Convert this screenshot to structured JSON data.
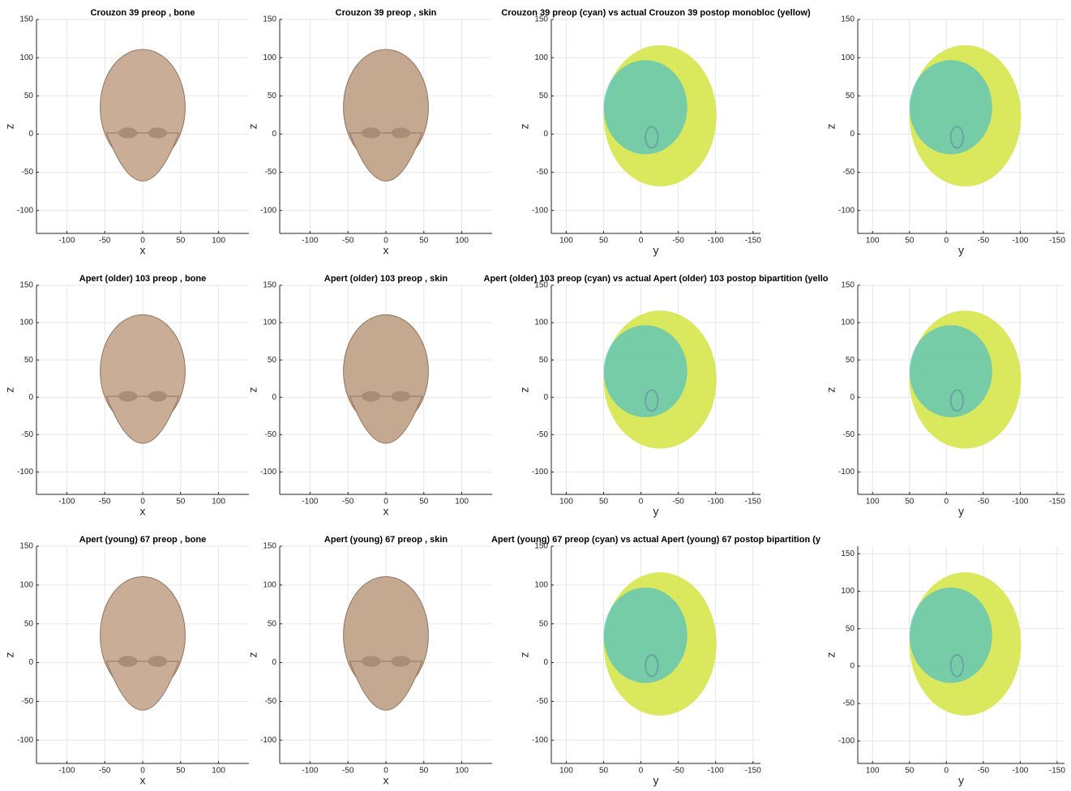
{
  "chart_data": [
    {
      "type": "surface",
      "title": "Crouzon 39 preop , bone",
      "xlabel": "x",
      "ylabel": "z",
      "xlim": [
        -140,
        140
      ],
      "ylim": [
        -130,
        150
      ],
      "xticks": [
        -100,
        -50,
        0,
        50,
        100
      ],
      "yticks": [
        -100,
        -50,
        0,
        50,
        100,
        150
      ],
      "grid": true,
      "colors": [
        "#c9ad96"
      ]
    },
    {
      "type": "surface",
      "title": "Crouzon 39 preop , skin",
      "xlabel": "x",
      "ylabel": "z",
      "xlim": [
        -140,
        140
      ],
      "ylim": [
        -130,
        150
      ],
      "xticks": [
        -100,
        -50,
        0,
        50,
        100
      ],
      "yticks": [
        -100,
        -50,
        0,
        50,
        100,
        150
      ],
      "grid": true,
      "colors": [
        "#c4a890"
      ]
    },
    {
      "type": "surface",
      "title": "Crouzon 39 preop (cyan) vs actual Crouzon 39 postop monobloc (yellow)",
      "xlabel": "y",
      "ylabel": "z",
      "xlim": [
        120,
        -160
      ],
      "ylim": [
        -130,
        150
      ],
      "xticks": [
        100,
        50,
        0,
        -50,
        -100,
        -150
      ],
      "yticks": [
        -100,
        -50,
        0,
        50,
        100,
        150
      ],
      "grid": true,
      "colors": [
        "#d6e64c",
        "#22b4e4"
      ]
    },
    {
      "type": "surface",
      "xlabel": "y",
      "ylabel": "z",
      "xlim": [
        120,
        -160
      ],
      "ylim": [
        -130,
        150
      ],
      "xticks": [
        100,
        50,
        0,
        -50,
        -100,
        -150
      ],
      "yticks": [
        -100,
        -50,
        0,
        50,
        100,
        150
      ],
      "grid": true,
      "colors": [
        "#d6e64c",
        "#22b4e4"
      ]
    },
    {
      "type": "surface",
      "title": "Apert (older) 103 preop , bone",
      "xlabel": "x",
      "ylabel": "z",
      "xlim": [
        -140,
        140
      ],
      "ylim": [
        -130,
        150
      ],
      "xticks": [
        -100,
        -50,
        0,
        50,
        100
      ],
      "yticks": [
        -100,
        -50,
        0,
        50,
        100,
        150
      ],
      "grid": true,
      "colors": [
        "#c9ad96"
      ]
    },
    {
      "type": "surface",
      "title": "Apert (older) 103 preop , skin",
      "xlabel": "x",
      "ylabel": "z",
      "xlim": [
        -140,
        140
      ],
      "ylim": [
        -130,
        150
      ],
      "xticks": [
        -100,
        -50,
        0,
        50,
        100
      ],
      "yticks": [
        -100,
        -50,
        0,
        50,
        100,
        150
      ],
      "grid": true,
      "colors": [
        "#c4a890"
      ]
    },
    {
      "type": "surface",
      "title": "Apert (older) 103 preop (cyan) vs actual Apert (older) 103 postop bipartition (yello",
      "xlabel": "y",
      "ylabel": "z",
      "xlim": [
        120,
        -160
      ],
      "ylim": [
        -130,
        150
      ],
      "xticks": [
        100,
        50,
        0,
        -50,
        -100,
        -150
      ],
      "yticks": [
        -100,
        -50,
        0,
        50,
        100,
        150
      ],
      "grid": true,
      "colors": [
        "#d6e64c",
        "#22b4e4"
      ]
    },
    {
      "type": "surface",
      "xlabel": "y",
      "ylabel": "z",
      "xlim": [
        120,
        -160
      ],
      "ylim": [
        -130,
        150
      ],
      "xticks": [
        100,
        50,
        0,
        -50,
        -100,
        -150
      ],
      "yticks": [
        -100,
        -50,
        0,
        50,
        100,
        150
      ],
      "grid": true,
      "colors": [
        "#d6e64c",
        "#22b4e4"
      ]
    },
    {
      "type": "surface",
      "title": "Apert (young) 67 preop , bone",
      "xlabel": "x",
      "ylabel": "z",
      "xlim": [
        -140,
        140
      ],
      "ylim": [
        -130,
        150
      ],
      "xticks": [
        -100,
        -50,
        0,
        50,
        100
      ],
      "yticks": [
        -100,
        -50,
        0,
        50,
        100,
        150
      ],
      "grid": true,
      "colors": [
        "#c9ad96"
      ]
    },
    {
      "type": "surface",
      "title": "Apert (young) 67 preop , skin",
      "xlabel": "x",
      "ylabel": "z",
      "xlim": [
        -140,
        140
      ],
      "ylim": [
        -130,
        150
      ],
      "xticks": [
        -100,
        -50,
        0,
        50,
        100
      ],
      "yticks": [
        -100,
        -50,
        0,
        50,
        100,
        150
      ],
      "grid": true,
      "colors": [
        "#c4a890"
      ]
    },
    {
      "type": "surface",
      "title": "Apert (young) 67 preop (cyan) vs actual Apert (young) 67 postop bipartition (y",
      "xlabel": "y",
      "ylabel": "z",
      "xlim": [
        120,
        -160
      ],
      "ylim": [
        -130,
        150
      ],
      "xticks": [
        100,
        50,
        0,
        -50,
        -100,
        -150
      ],
      "yticks": [
        -100,
        -50,
        0,
        50,
        100,
        150
      ],
      "grid": true,
      "colors": [
        "#d6e64c",
        "#22b4e4"
      ]
    },
    {
      "type": "surface",
      "xlabel": "y",
      "ylabel": "z",
      "xlim": [
        120,
        -160
      ],
      "ylim": [
        -130,
        160
      ],
      "xticks": [
        100,
        50,
        0,
        -50,
        -100,
        -150
      ],
      "yticks": [
        -100,
        -50,
        0,
        50,
        100,
        150
      ],
      "grid": true,
      "colors": [
        "#d6e64c",
        "#22b4e4"
      ]
    }
  ]
}
